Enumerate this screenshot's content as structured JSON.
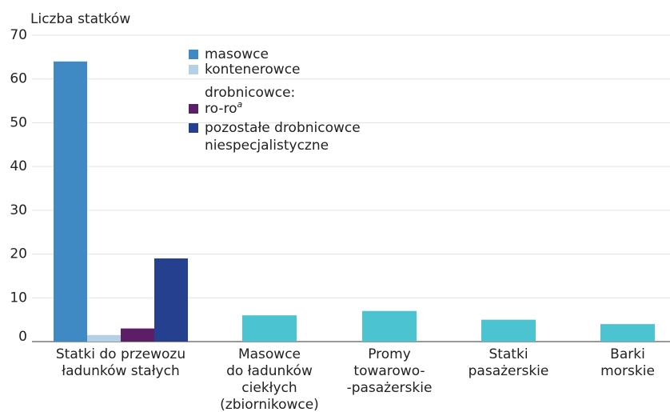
{
  "chart_data": {
    "type": "bar",
    "y_label": "Liczba statków",
    "categories": [
      [
        "Statki do przewozu",
        "ładunków stałych"
      ],
      [
        "Masowce",
        "do ładunków",
        "ciekłych",
        "(zbiornikowce)"
      ],
      [
        "Promy",
        "towarowo-",
        "-pasażerskie"
      ],
      [
        "Statki",
        "pasażerskie"
      ],
      [
        "Barki",
        "morskie"
      ]
    ],
    "series": [
      {
        "name": "masowce",
        "color": "#3f8ac4",
        "values": [
          64,
          null,
          null,
          null,
          null
        ]
      },
      {
        "name": "kontenerowce",
        "color": "#b3d0e6",
        "values": [
          1.5,
          null,
          null,
          null,
          null
        ]
      },
      {
        "name": "ro-ro",
        "note": "a",
        "color": "#5c1e66",
        "values": [
          3,
          null,
          null,
          null,
          null
        ]
      },
      {
        "name": "pozostałe drobnicowce niespecjalistyczne",
        "color": "#25408f",
        "values": [
          19,
          null,
          null,
          null,
          null
        ]
      }
    ],
    "legend_subheading": "drobnicowce:",
    "values": [
      null,
      6,
      7,
      5,
      4
    ],
    "color": "#4cc3d1",
    "ylim": [
      0,
      70
    ],
    "yticks": [
      0,
      10,
      20,
      30,
      40,
      50,
      60,
      70
    ],
    "grid": true
  }
}
